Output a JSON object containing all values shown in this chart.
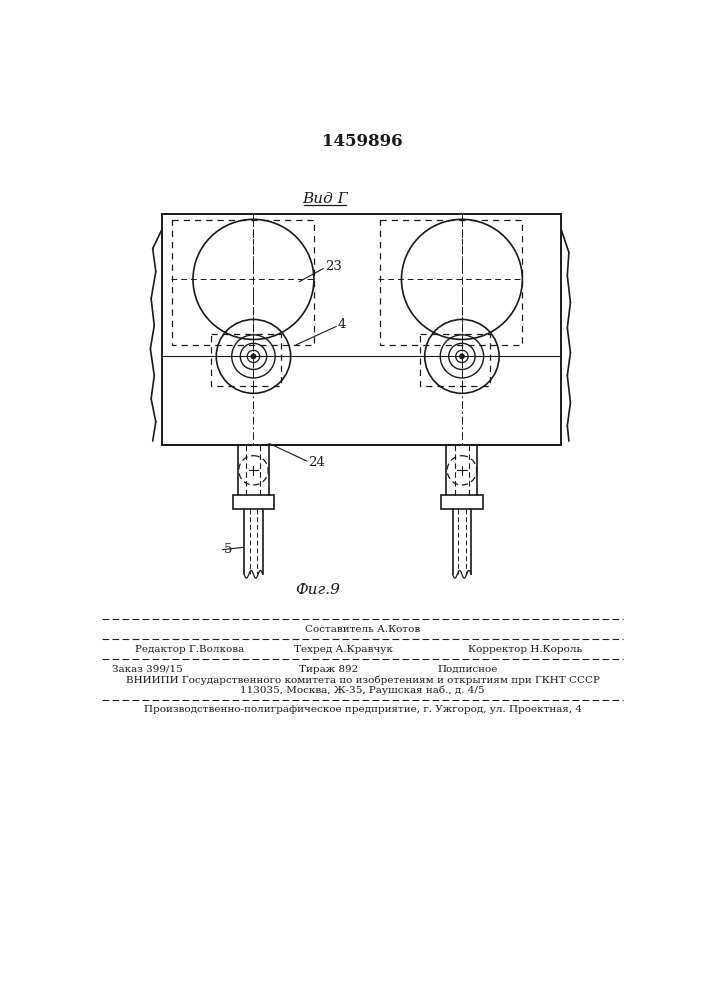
{
  "title_number": "1459896",
  "view_label": "Вид Г",
  "fig_label": "Фиг.9",
  "label_23": "23",
  "label_4": "4",
  "label_24": "24",
  "label_5": "5",
  "footer_sestavitel": "Составитель А.Котов",
  "footer_editor": "Редактор Г.Волкова",
  "footer_tekhred": "Техред А.Кравчук",
  "footer_korrektor": "Корректор Н.Король",
  "footer_zakaz": "Заказ 399/15",
  "footer_tirazh": "Тираж 892",
  "footer_podpisnoe": "Подписное",
  "footer_vniipи": "ВНИИПИ Государственного комитета по изобретениям и открытиям при ГКНТ СССР",
  "footer_addr": "113035, Москва, Ж-35, Раушская наб., д. 4/5",
  "footer_prod": "Производственно-полиграфическое предприятие, г. Ужгород, ул. Проектная, 4",
  "bg_color": "#ffffff",
  "line_color": "#1a1a1a"
}
